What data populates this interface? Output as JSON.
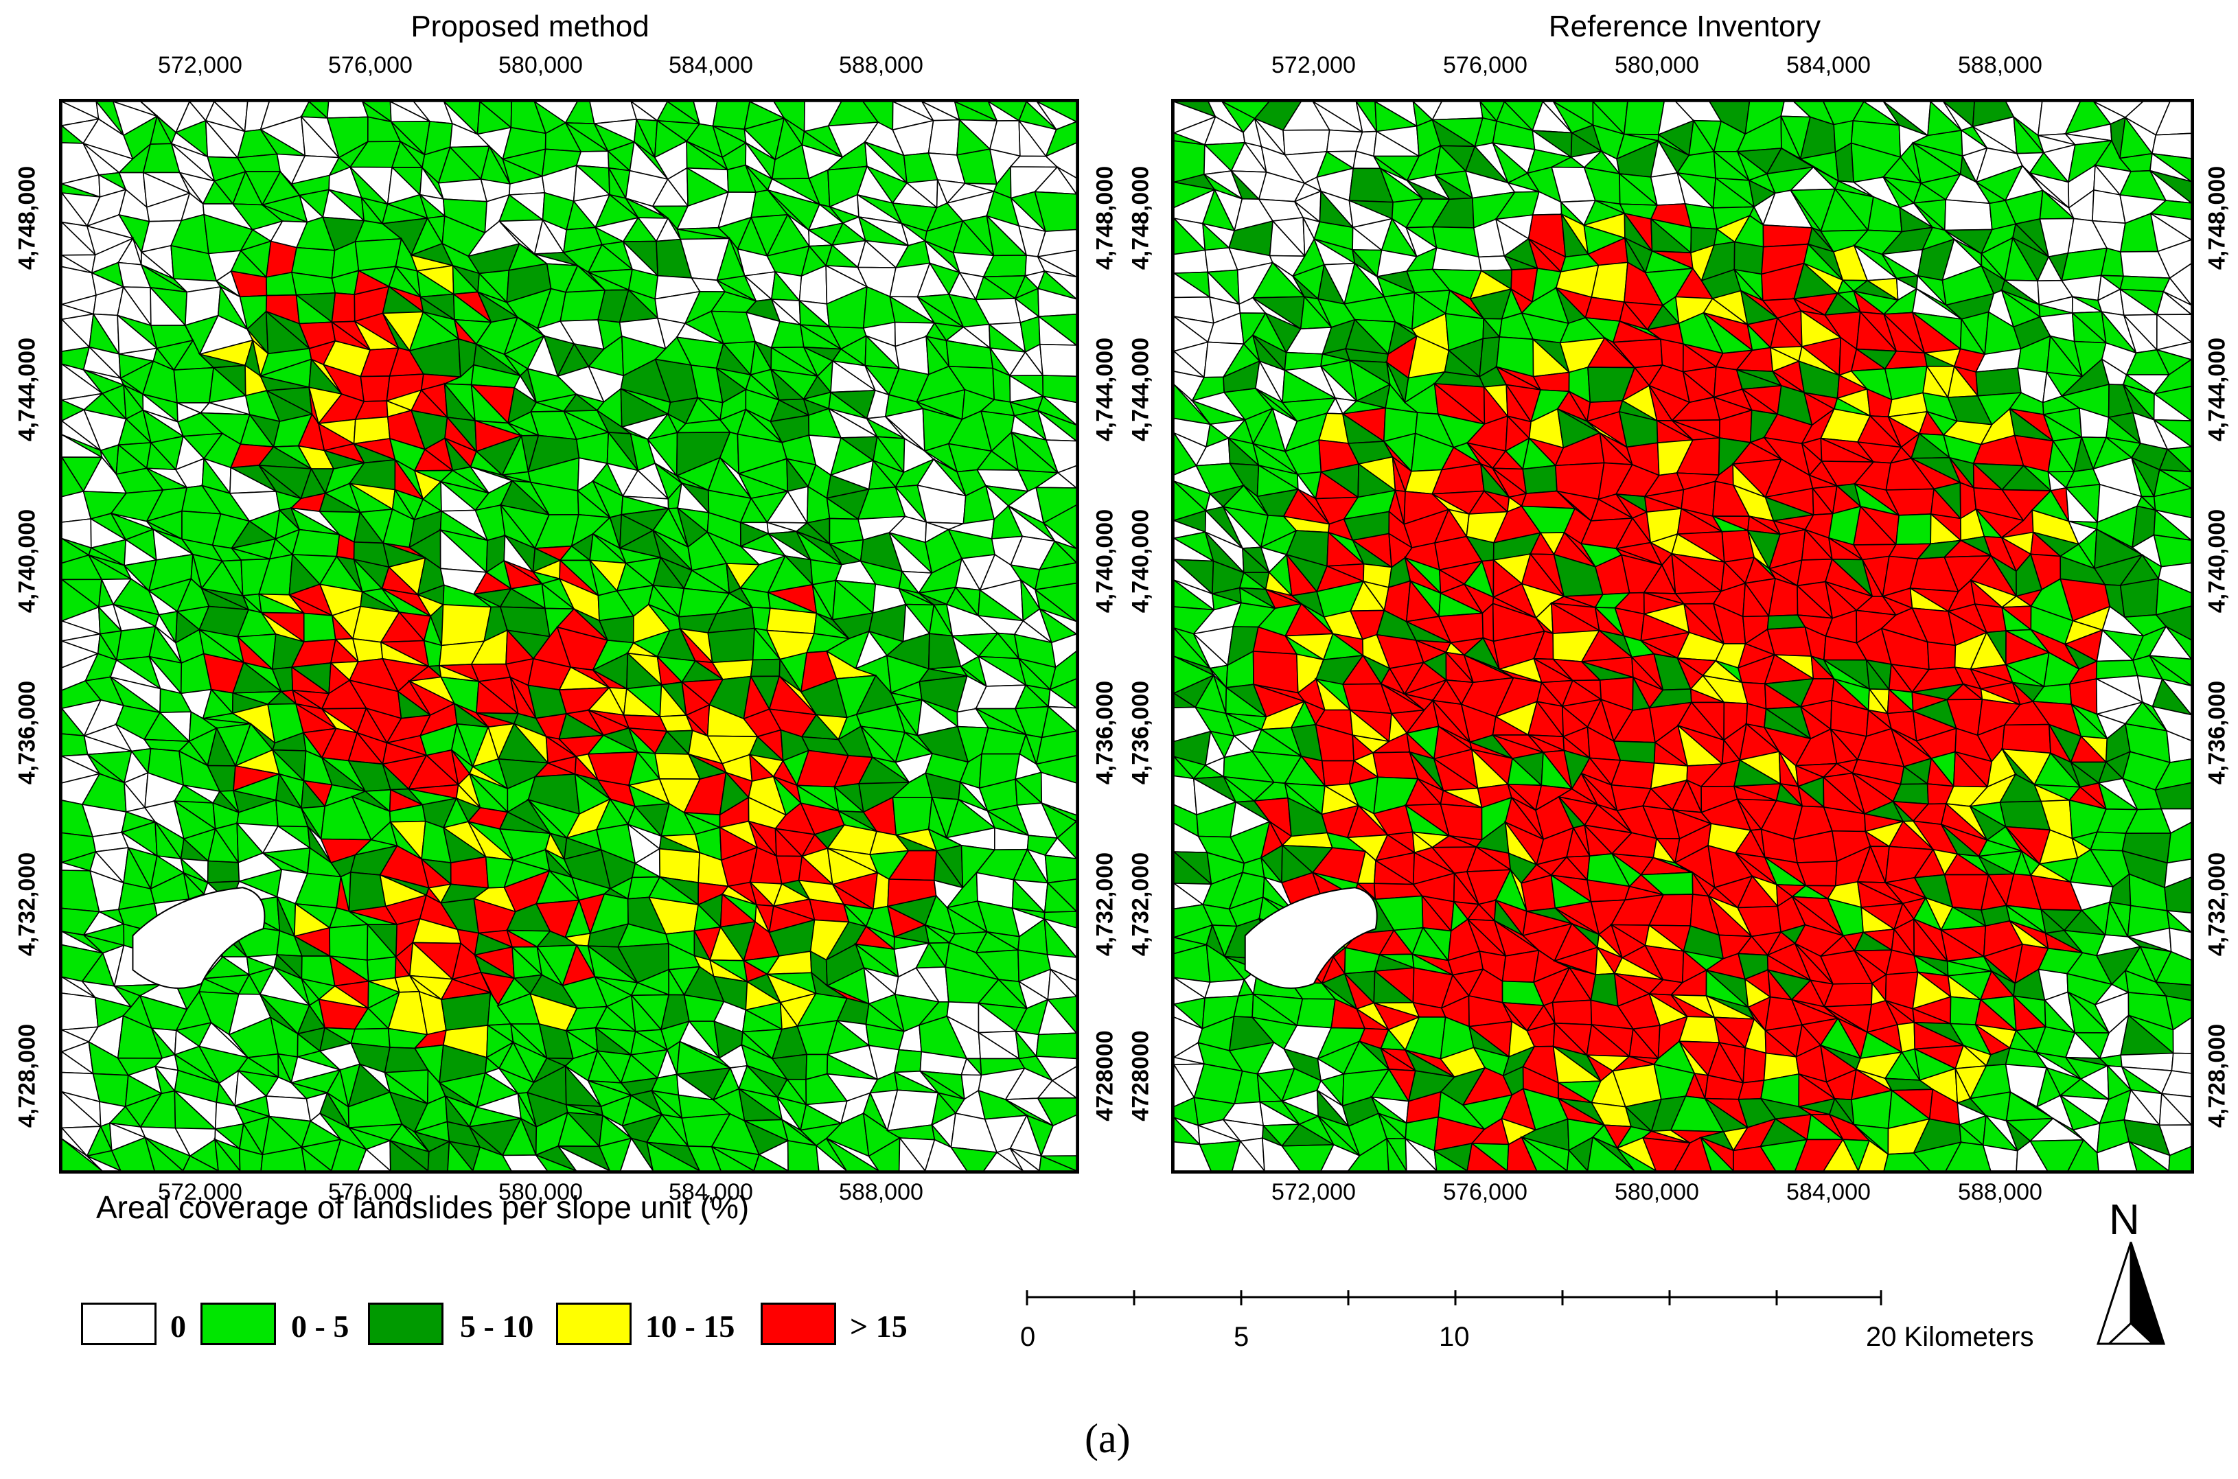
{
  "panels": [
    {
      "title": "Proposed method",
      "top_ticks": [
        "572,000",
        "576,000",
        "580,000",
        "584,000",
        "588,000"
      ],
      "bottom_ticks": [
        "572,000",
        "576,000",
        "580,000",
        "584,000",
        "588,000"
      ],
      "left_ticks": [
        "4,748,000",
        "4,744,000",
        "4,740,000",
        "4,736,000",
        "4,732,000",
        "4,728,000"
      ],
      "right_ticks": [
        "4,748,000",
        "4,744,000",
        "4,740,000",
        "4,736,000",
        "4,732,000",
        "4728000"
      ]
    },
    {
      "title": "Reference Inventory",
      "top_ticks": [
        "572,000",
        "576,000",
        "580,000",
        "584,000",
        "588,000"
      ],
      "bottom_ticks": [
        "572,000",
        "576,000",
        "580,000",
        "584,000",
        "588,000"
      ],
      "left_ticks": [
        "4,748,000",
        "4,744,000",
        "4,740,000",
        "4,736,000",
        "4,732,000",
        "4728000"
      ],
      "right_ticks": [
        "4,748,000",
        "4,744,000",
        "4,740,000",
        "4,736,000",
        "4,732,000",
        "4,728,000"
      ]
    }
  ],
  "legend": {
    "title": "Areal coverage of landslides per slope unit (%)",
    "classes": [
      {
        "label": "0",
        "color": "#ffffff"
      },
      {
        "label": "0 - 5",
        "color": "#00e600"
      },
      {
        "label": "5 - 10",
        "color": "#009a00"
      },
      {
        "label": "10 - 15",
        "color": "#ffff00"
      },
      {
        "label": "> 15",
        "color": "#ff0000"
      }
    ]
  },
  "scale_bar": {
    "labels": [
      "0",
      "5",
      "10",
      "20 Kilometers"
    ]
  },
  "north_arrow": {
    "label": "N",
    "icon": "north-arrow-icon"
  },
  "caption": "(a)"
}
